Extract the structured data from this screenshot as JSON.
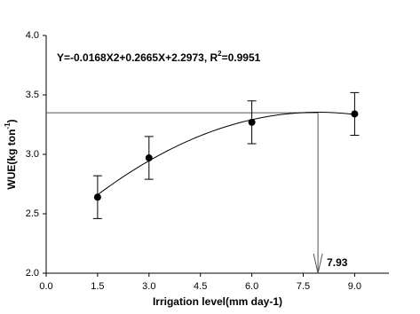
{
  "chart_data": {
    "type": "scatter",
    "x_label": "Irrigation level(mm day-1)",
    "y_label": {
      "text": "WUE(kg ton",
      "sup": "-1",
      "close": ")"
    },
    "equation": {
      "text": "Y=-0.0168X2+0.2665X+2.2973, R",
      "sup": "2",
      "tail": "=0.9951"
    },
    "x": [
      1.5,
      3.0,
      6.0,
      9.0
    ],
    "series": [
      {
        "color": "#000000",
        "values": [
          2.64,
          2.97,
          3.27,
          3.34
        ],
        "errors": [
          0.18,
          0.18,
          0.18,
          0.18
        ]
      }
    ],
    "fit": {
      "coefficients": [
        -0.0168,
        0.2665,
        2.2973
      ]
    },
    "hline": 3.35,
    "vline": {
      "value": 7.93,
      "label": "7.93"
    },
    "xlim": [
      0,
      10
    ],
    "xticks": [
      {
        "value": 0,
        "label": "0.0"
      },
      1.5,
      {
        "value": 3,
        "label": "3.0"
      },
      4.5,
      {
        "value": 6,
        "label": "6.0"
      },
      7.5,
      {
        "value": 9,
        "label": "9.0"
      }
    ],
    "ylim": [
      2,
      4
    ],
    "yticks": [
      {
        "value": 2,
        "label": "2.0"
      },
      2.5,
      {
        "value": 3,
        "label": "3.0"
      },
      3.5,
      {
        "value": 4,
        "label": "4.0"
      }
    ]
  }
}
